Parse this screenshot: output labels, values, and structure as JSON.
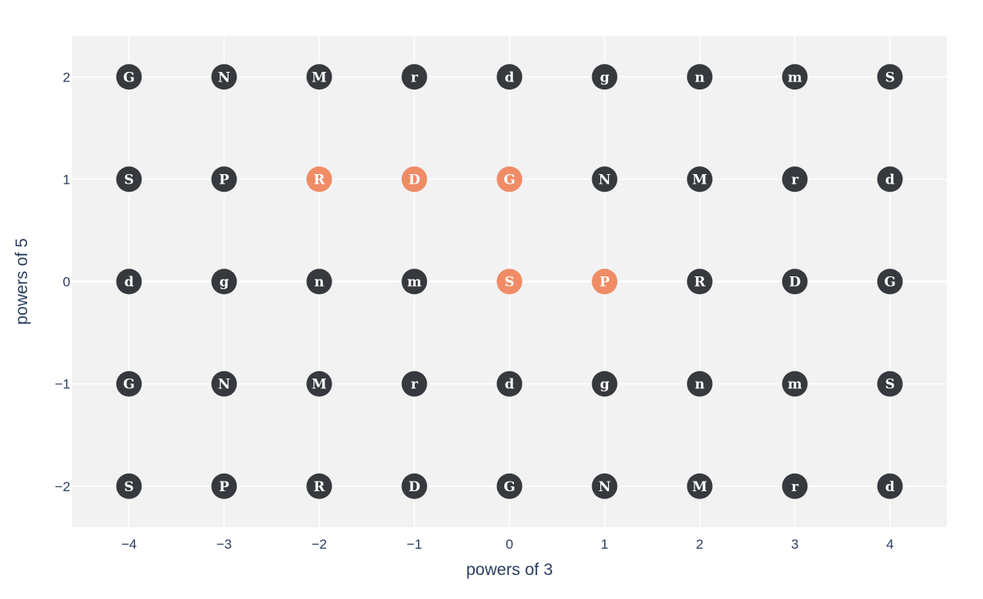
{
  "chart_data": {
    "type": "scatter",
    "xlabel": "powers of 3",
    "ylabel": "powers of 5",
    "xlim": [
      -4.6,
      4.6
    ],
    "ylim": [
      -2.4,
      2.4
    ],
    "x_ticks": [
      -4,
      -3,
      -2,
      -1,
      0,
      1,
      2,
      3,
      4
    ],
    "y_ticks": [
      -2,
      -1,
      0,
      1,
      2
    ],
    "x_tick_labels": [
      "−4",
      "−3",
      "−2",
      "−1",
      "0",
      "1",
      "2",
      "3",
      "4"
    ],
    "y_tick_labels": [
      "−2",
      "−1",
      "0",
      "1",
      "2"
    ],
    "grid": true,
    "colors": {
      "default": "#36393e",
      "highlight": "#ef8c66",
      "plot_bg": "#f2f2f2",
      "grid": "#ffffff",
      "text": "#2a3f5f"
    },
    "rows": [
      {
        "y": 2,
        "labels": [
          "G",
          "N",
          "M",
          "r",
          "d",
          "g",
          "n",
          "m",
          "S"
        ]
      },
      {
        "y": 1,
        "labels": [
          "S",
          "P",
          "R",
          "D",
          "G",
          "N",
          "M",
          "r",
          "d"
        ]
      },
      {
        "y": 0,
        "labels": [
          "d",
          "g",
          "n",
          "m",
          "S",
          "P",
          "R",
          "D",
          "G"
        ]
      },
      {
        "y": -1,
        "labels": [
          "G",
          "N",
          "M",
          "r",
          "d",
          "g",
          "n",
          "m",
          "S"
        ]
      },
      {
        "y": -2,
        "labels": [
          "S",
          "P",
          "R",
          "D",
          "G",
          "N",
          "M",
          "r",
          "d"
        ]
      }
    ],
    "highlighted": [
      [
        -2,
        1
      ],
      [
        -1,
        1
      ],
      [
        0,
        1
      ],
      [
        0,
        0
      ],
      [
        1,
        0
      ]
    ]
  }
}
